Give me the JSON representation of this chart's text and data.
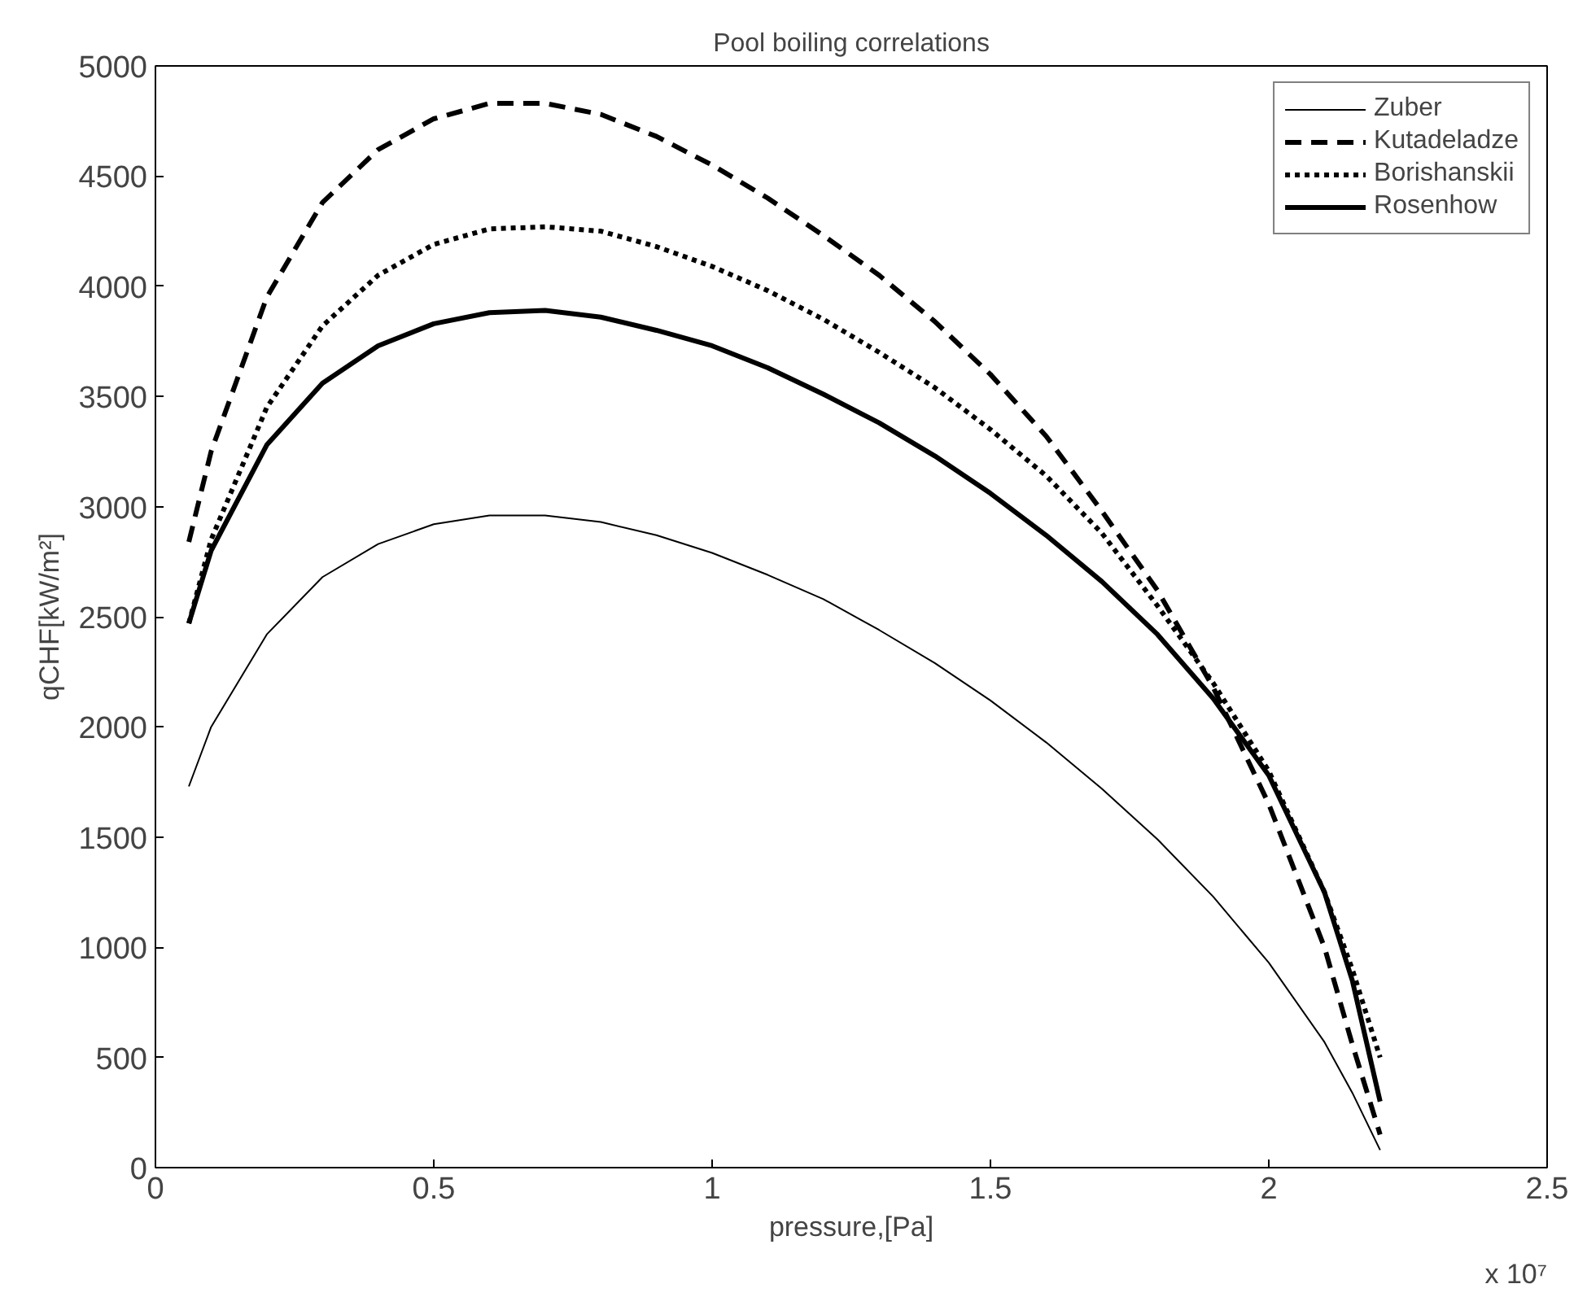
{
  "chart_data": {
    "type": "line",
    "title": "Pool boiling correlations",
    "xlabel": "pressure,[Pa]",
    "ylabel": "qCHF[kW/m²]",
    "annotations": [
      "x 10⁷"
    ],
    "x": [
      0.06,
      0.1,
      0.2,
      0.3,
      0.4,
      0.5,
      0.6,
      0.7,
      0.8,
      0.9,
      1.0,
      1.1,
      1.2,
      1.3,
      1.4,
      1.5,
      1.6,
      1.7,
      1.8,
      1.9,
      2.0,
      2.1,
      2.15,
      2.2
    ],
    "series": [
      {
        "name": "Zuber",
        "color": "#000000",
        "line_style": "solid",
        "values": [
          1730,
          2000,
          2420,
          2680,
          2830,
          2920,
          2960,
          2960,
          2930,
          2870,
          2790,
          2690,
          2580,
          2440,
          2290,
          2120,
          1930,
          1720,
          1490,
          1230,
          930,
          570,
          340,
          80
        ]
      },
      {
        "name": "Kutadeladze",
        "color": "#000000",
        "line_style": "dashed",
        "values": [
          2840,
          3250,
          3950,
          4380,
          4620,
          4760,
          4830,
          4830,
          4780,
          4680,
          4550,
          4400,
          4230,
          4050,
          3840,
          3600,
          3320,
          2980,
          2620,
          2180,
          1650,
          1000,
          560,
          150
        ]
      },
      {
        "name": "Borishanskii",
        "color": "#000000",
        "line_style": "dotted",
        "values": [
          2470,
          2850,
          3450,
          3820,
          4050,
          4190,
          4260,
          4270,
          4250,
          4180,
          4090,
          3980,
          3850,
          3700,
          3540,
          3350,
          3140,
          2880,
          2550,
          2200,
          1800,
          1250,
          900,
          500
        ]
      },
      {
        "name": "Rosenhow",
        "color": "#000000",
        "line_style": "solid",
        "values": [
          2470,
          2800,
          3280,
          3560,
          3730,
          3830,
          3880,
          3890,
          3860,
          3800,
          3730,
          3630,
          3510,
          3380,
          3230,
          3060,
          2870,
          2660,
          2420,
          2130,
          1780,
          1250,
          850,
          300
        ]
      }
    ],
    "xlim": [
      0,
      2.5
    ],
    "xticks": [
      0,
      0.5,
      1,
      1.5,
      2,
      2.5
    ],
    "ylim": [
      0,
      5000
    ],
    "yticks": [
      0,
      500,
      1000,
      1500,
      2000,
      2500,
      3000,
      3500,
      4000,
      4500,
      5000
    ],
    "grid": false,
    "legend": "top right",
    "marker": "none"
  }
}
